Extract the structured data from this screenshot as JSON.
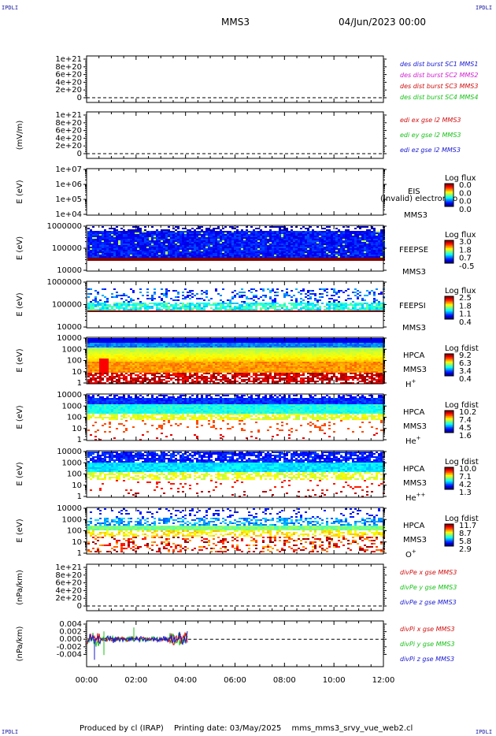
{
  "header": {
    "title": "MMS3",
    "date": "04/Jun/2023 00:00",
    "corner_label": "IPDLI"
  },
  "footer": {
    "produced_by": "Produced by cl (IRAP)",
    "printing_date": "Printing date: 03/May/2025",
    "script": "mms_mms3_srvy_vue_web2.cl"
  },
  "colors": {
    "blue": "#1a1ad0",
    "magenta": "#d020d0",
    "red": "#d01010",
    "green": "#18c018"
  },
  "chart_data": {
    "type": "heatmap",
    "x_tick_labels": [
      "00:00",
      "02:00",
      "04:00",
      "06:00",
      "08:00",
      "10:00",
      "12:00"
    ],
    "xlim_hours": [
      0,
      12
    ],
    "panels": [
      {
        "id": "burst",
        "kind": "line",
        "ylabel": "",
        "yticks": [
          "1e+21",
          "8e+20",
          "6e+20",
          "4e+20",
          "2e+20",
          "0"
        ],
        "legend": [
          {
            "text": "des dist burst SC1 MMS1",
            "color": "blue"
          },
          {
            "text": "des dist burst SC2 MMS2",
            "color": "magenta"
          },
          {
            "text": "des dist burst SC3 MMS3",
            "color": "red"
          },
          {
            "text": "des dist burst SC4 MMS4",
            "color": "green"
          }
        ]
      },
      {
        "id": "edi",
        "kind": "line",
        "ylabel": "(mV/m)",
        "yticks": [
          "1e+21",
          "8e+20",
          "6e+20",
          "4e+20",
          "2e+20",
          "0"
        ],
        "legend": [
          {
            "text": "edi ex gse l2 MMS3",
            "color": "red"
          },
          {
            "text": "edi ey gse l2 MMS3",
            "color": "green"
          },
          {
            "text": "edi ez gse l2 MMS3",
            "color": "blue"
          }
        ]
      },
      {
        "id": "eis",
        "kind": "spectrogram",
        "ylabel": "E (eV)",
        "yticks": [
          "1e+07",
          "1e+06",
          "1e+05",
          "1e+04"
        ],
        "instrument": [
          "EIS",
          "MMS3"
        ],
        "overlay": "(Invalid) electron to",
        "colorbar": {
          "title": "Log flux",
          "ticks": [
            "0.0",
            "0.0",
            "0.0",
            "0.0"
          ]
        }
      },
      {
        "id": "feepse",
        "kind": "spectrogram",
        "ylabel": "E (eV)",
        "yticks": [
          "1000000",
          "100000",
          "10000"
        ],
        "instrument": [
          "FEEPSE",
          "MMS3"
        ],
        "colorbar": {
          "title": "Log flux",
          "ticks": [
            "3.0",
            "1.8",
            "0.7",
            "-0.5"
          ]
        }
      },
      {
        "id": "feepsi",
        "kind": "spectrogram",
        "ylabel": "E (eV)",
        "yticks": [
          "1000000",
          "100000",
          "10000"
        ],
        "instrument": [
          "FEEPSI",
          "MMS3"
        ],
        "colorbar": {
          "title": "Log flux",
          "ticks": [
            "2.5",
            "1.8",
            "1.1",
            "0.4"
          ]
        }
      },
      {
        "id": "hpca-h",
        "kind": "spectrogram",
        "ylabel": "E (eV)",
        "yticks": [
          "10000",
          "1000",
          "100",
          "10",
          "1"
        ],
        "instrument": [
          "HPCA",
          "MMS3"
        ],
        "species": "H",
        "species_sup": "+",
        "colorbar": {
          "title": "Log fdist",
          "ticks": [
            "9.2",
            "6.3",
            "3.4",
            "0.4"
          ]
        }
      },
      {
        "id": "hpca-he",
        "kind": "spectrogram",
        "ylabel": "E (eV)",
        "yticks": [
          "10000",
          "1000",
          "100",
          "10",
          "1"
        ],
        "instrument": [
          "HPCA",
          "MMS3"
        ],
        "species": "He",
        "species_sup": "+",
        "colorbar": {
          "title": "Log fdist",
          "ticks": [
            "10.2",
            "7.4",
            "4.5",
            "1.6"
          ]
        }
      },
      {
        "id": "hpca-hepp",
        "kind": "spectrogram",
        "ylabel": "E (eV)",
        "yticks": [
          "10000",
          "1000",
          "100",
          "10",
          "1"
        ],
        "instrument": [
          "HPCA",
          "MMS3"
        ],
        "species": "He",
        "species_sup": "++",
        "colorbar": {
          "title": "Log fdist",
          "ticks": [
            "10.0",
            "7.1",
            "4.2",
            "1.3"
          ]
        }
      },
      {
        "id": "hpca-o",
        "kind": "spectrogram",
        "ylabel": "E (eV)",
        "yticks": [
          "10000",
          "1000",
          "100",
          "10",
          "1"
        ],
        "instrument": [
          "HPCA",
          "MMS3"
        ],
        "species": "O",
        "species_sup": "+",
        "colorbar": {
          "title": "Log fdist",
          "ticks": [
            "11.7",
            "8.7",
            "5.8",
            "2.9"
          ]
        }
      },
      {
        "id": "divpe",
        "kind": "line",
        "ylabel": "(nPa/km)",
        "yticks": [
          "1e+21",
          "8e+20",
          "6e+20",
          "4e+20",
          "2e+20",
          "0"
        ],
        "legend": [
          {
            "text": "divPe x gse MMS3",
            "color": "red"
          },
          {
            "text": "divPe y gse MMS3",
            "color": "green"
          },
          {
            "text": "divPe z gse MMS3",
            "color": "blue"
          }
        ]
      },
      {
        "id": "divpi",
        "kind": "line",
        "ylabel": "(nPa/km)",
        "yticks": [
          "0.004",
          "0.002",
          "0.000",
          "-0.002",
          "-0.004"
        ],
        "legend": [
          {
            "text": "divPi x gse MMS3",
            "color": "red"
          },
          {
            "text": "divPi y gse MMS3",
            "color": "green"
          },
          {
            "text": "divPi z gse MMS3",
            "color": "blue"
          }
        ]
      }
    ]
  }
}
